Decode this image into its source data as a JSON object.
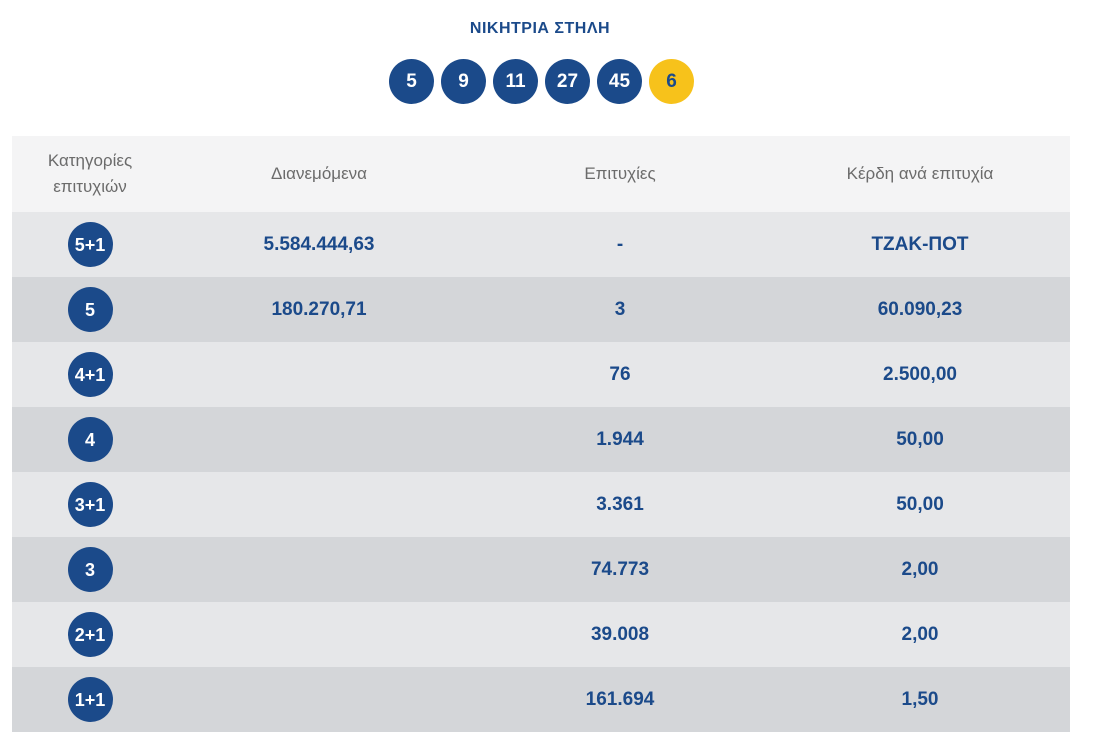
{
  "winning_column": {
    "title": "ΝΙΚΗΤΡΙΑ ΣΤΗΛΗ",
    "numbers": [
      "5",
      "9",
      "11",
      "27",
      "45"
    ],
    "bonus": "6"
  },
  "table": {
    "headers": {
      "categories_line1": "Κατηγορίες",
      "categories_line2": "επιτυχιών",
      "distributed": "Διανεμόμενα",
      "winners": "Επιτυχίες",
      "prize": "Κέρδη ανά επιτυχία"
    },
    "rows": [
      {
        "category": "5+1",
        "distributed": "5.584.444,63",
        "winners": "-",
        "prize": "ΤΖΑΚ-ΠΟΤ"
      },
      {
        "category": "5",
        "distributed": "180.270,71",
        "winners": "3",
        "prize": "60.090,23"
      },
      {
        "category": "4+1",
        "distributed": "",
        "winners": "76",
        "prize": "2.500,00"
      },
      {
        "category": "4",
        "distributed": "",
        "winners": "1.944",
        "prize": "50,00"
      },
      {
        "category": "3+1",
        "distributed": "",
        "winners": "3.361",
        "prize": "50,00"
      },
      {
        "category": "3",
        "distributed": "",
        "winners": "74.773",
        "prize": "2,00"
      },
      {
        "category": "2+1",
        "distributed": "",
        "winners": "39.008",
        "prize": "2,00"
      },
      {
        "category": "1+1",
        "distributed": "",
        "winners": "161.694",
        "prize": "1,50"
      }
    ]
  },
  "colors": {
    "primary": "#1b4a8a",
    "bonus": "#f7c21b",
    "header_bg": "#f4f4f5",
    "row_light": "#e6e7e9",
    "row_dark": "#d4d6d9"
  }
}
